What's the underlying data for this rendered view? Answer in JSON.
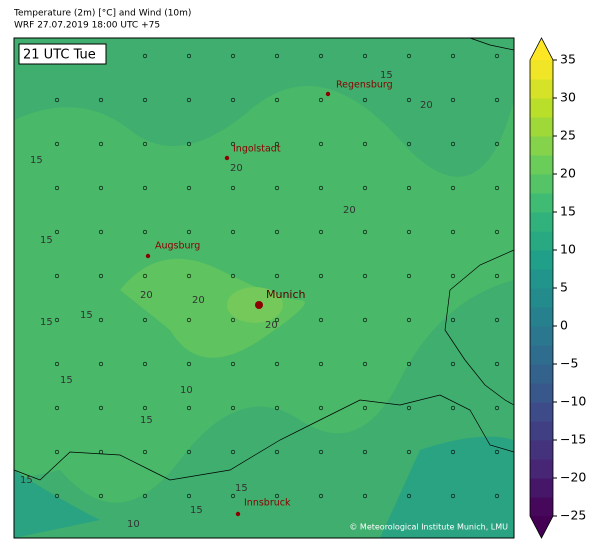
{
  "header": {
    "line1": "Temperature (2m) [°C] and Wind (10m)",
    "line2": "WRF 27.07.2019 18:00 UTC +75"
  },
  "map": {
    "time_label": "21 UTC Tue",
    "cities": [
      "Regensburg",
      "Ingolstadt",
      "Augsburg",
      "Munich",
      "Innsbruck"
    ],
    "contour_labels": [
      "15",
      "20",
      "15",
      "20",
      "20",
      "15",
      "20",
      "20",
      "15",
      "15",
      "15",
      "20",
      "15",
      "10",
      "15",
      "15",
      "10",
      "15"
    ],
    "credit": "© Meteorological Institute Munich, LMU"
  },
  "colorbar": {
    "lim": [
      -25,
      35
    ],
    "ticks": [
      {
        "value": -25,
        "label": "−25"
      },
      {
        "value": -20,
        "label": "−20"
      },
      {
        "value": -15,
        "label": "−15"
      },
      {
        "value": -10,
        "label": "−10"
      },
      {
        "value": -5,
        "label": "−5"
      },
      0,
      5,
      10,
      15,
      20,
      25,
      30,
      35
    ],
    "colors": [
      "#440154",
      "#482878",
      "#3e4989",
      "#31688e",
      "#26828e",
      "#1f9e89",
      "#35b779",
      "#6ece58",
      "#b5de2b",
      "#fde725"
    ]
  }
}
